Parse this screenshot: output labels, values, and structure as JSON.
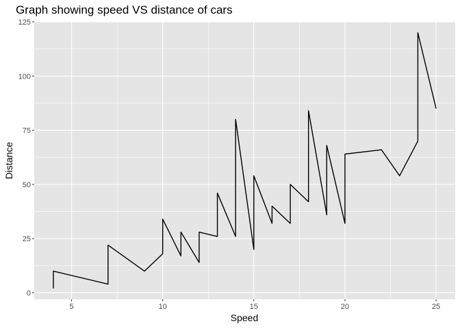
{
  "chart_data": {
    "type": "line",
    "title": "Graph showing speed VS distance of cars",
    "xlabel": "Speed",
    "ylabel": "Distance",
    "xlim": [
      2.95,
      26.05
    ],
    "ylim": [
      -3,
      125
    ],
    "x_ticks": [
      5,
      10,
      15,
      20,
      25
    ],
    "y_ticks": [
      0,
      25,
      50,
      75,
      100,
      125
    ],
    "grid": true,
    "legend": "none",
    "colors": {
      "panel": "#e5e5e5",
      "grid": "#ffffff",
      "line": "#000000",
      "tick_label": "#4d4d4d"
    },
    "series": [
      {
        "x": [
          4,
          4,
          7,
          7,
          8,
          9,
          10,
          10,
          10,
          11,
          11,
          12,
          12,
          12,
          12,
          13,
          13,
          13,
          13,
          14,
          14,
          14,
          14,
          15,
          15,
          15,
          16,
          16,
          17,
          17,
          17,
          18,
          18,
          18,
          18,
          19,
          19,
          19,
          20,
          20,
          20,
          20,
          20,
          22,
          23,
          24,
          24,
          24,
          24,
          25
        ],
        "y": [
          2,
          10,
          4,
          22,
          16,
          10,
          18,
          26,
          34,
          17,
          28,
          14,
          20,
          24,
          28,
          26,
          34,
          34,
          46,
          26,
          36,
          60,
          80,
          20,
          26,
          54,
          32,
          40,
          32,
          40,
          50,
          42,
          56,
          76,
          84,
          36,
          46,
          68,
          32,
          48,
          52,
          56,
          64,
          66,
          54,
          70,
          92,
          93,
          120,
          85
        ]
      }
    ]
  }
}
